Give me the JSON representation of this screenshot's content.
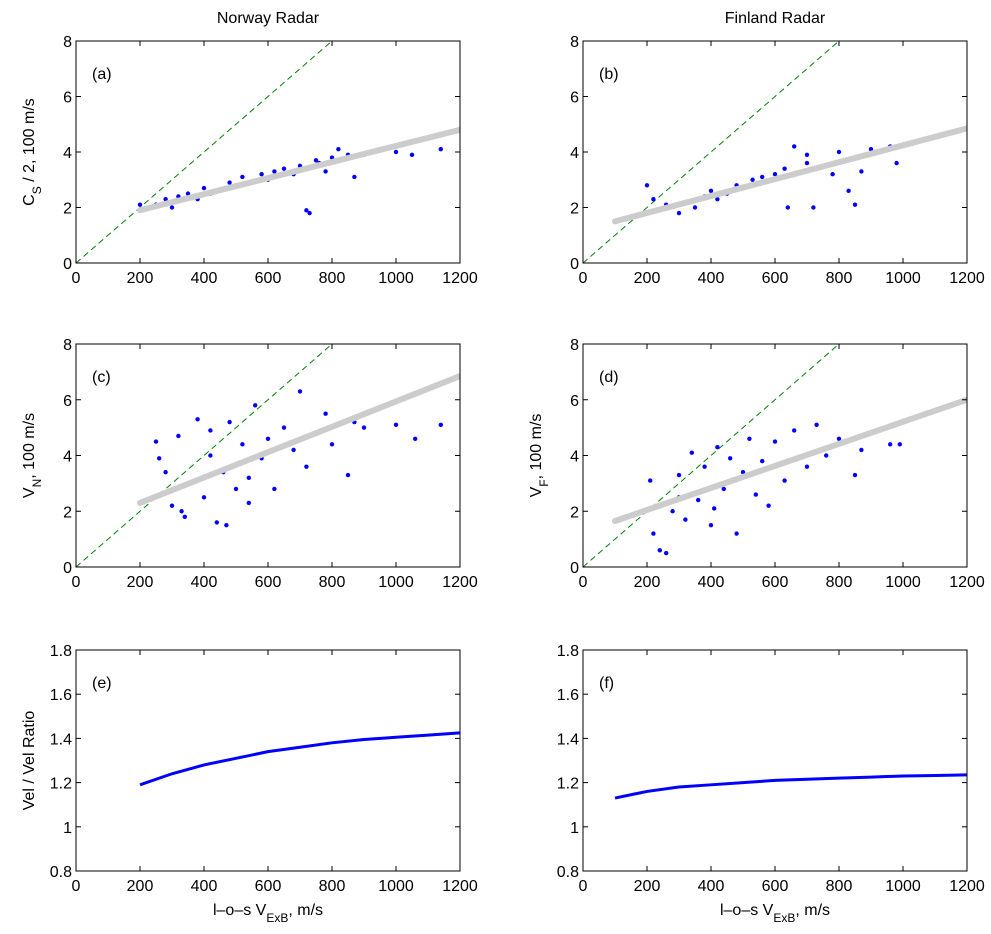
{
  "chart_data": [
    {
      "type": "scatter",
      "title": "Norway Radar",
      "panel_label": "(a)",
      "ylabel": [
        "C",
        "S",
        " / 2, 100 m/s"
      ],
      "xlim": [
        0,
        1200
      ],
      "xticks": [
        0,
        200,
        400,
        600,
        800,
        1000,
        1200
      ],
      "ylim": [
        0,
        8
      ],
      "yticks": [
        0,
        2,
        4,
        6,
        8
      ],
      "color": "#0000ff",
      "fit_color": "#cccccc",
      "reference_color": "#008000",
      "x": [
        250,
        280,
        300,
        320,
        350,
        380,
        400,
        420,
        450,
        480,
        500,
        520,
        550,
        580,
        600,
        620,
        650,
        680,
        700,
        720,
        750,
        780,
        800,
        820,
        850,
        870,
        730,
        760,
        1000,
        1050,
        1140,
        200,
        900
      ],
      "y": [
        2.1,
        2.3,
        2.0,
        2.4,
        2.5,
        2.3,
        2.7,
        2.5,
        2.6,
        2.9,
        2.8,
        3.1,
        2.9,
        3.2,
        3.0,
        3.3,
        3.4,
        3.2,
        3.5,
        1.9,
        3.7,
        3.3,
        3.8,
        4.1,
        3.9,
        3.1,
        1.8,
        3.6,
        4.0,
        3.9,
        4.1,
        2.1,
        3.9
      ],
      "fit": {
        "x": [
          200,
          1200
        ],
        "y": [
          1.9,
          4.8
        ]
      },
      "reference": {
        "x": [
          0,
          800
        ],
        "y": [
          0,
          8
        ]
      }
    },
    {
      "type": "scatter",
      "title": "Finland Radar",
      "panel_label": "(b)",
      "xlim": [
        0,
        1200
      ],
      "xticks": [
        0,
        200,
        400,
        600,
        800,
        1000,
        1200
      ],
      "ylim": [
        0,
        8
      ],
      "yticks": [
        0,
        2,
        4,
        6,
        8
      ],
      "color": "#0000ff",
      "fit_color": "#cccccc",
      "reference_color": "#008000",
      "x": [
        200,
        220,
        260,
        300,
        320,
        350,
        380,
        400,
        420,
        450,
        480,
        500,
        530,
        560,
        600,
        630,
        660,
        700,
        720,
        750,
        780,
        800,
        830,
        850,
        870,
        900,
        960,
        980,
        640,
        700
      ],
      "y": [
        2.8,
        2.3,
        2.1,
        1.8,
        2.2,
        2.0,
        2.4,
        2.6,
        2.3,
        2.5,
        2.8,
        2.7,
        3.0,
        3.1,
        3.2,
        3.4,
        4.2,
        3.6,
        2.0,
        3.5,
        3.2,
        4.0,
        2.6,
        2.1,
        3.3,
        4.1,
        4.2,
        3.6,
        2.0,
        3.9
      ],
      "fit": {
        "x": [
          100,
          1200
        ],
        "y": [
          1.5,
          4.85
        ]
      },
      "reference": {
        "x": [
          0,
          800
        ],
        "y": [
          0,
          8
        ]
      }
    },
    {
      "type": "scatter",
      "panel_label": "(c)",
      "ylabel": [
        "V",
        "N",
        ", 100 m/s"
      ],
      "xlim": [
        0,
        1200
      ],
      "xticks": [
        0,
        200,
        400,
        600,
        800,
        1000,
        1200
      ],
      "ylim": [
        0,
        8
      ],
      "yticks": [
        0,
        2,
        4,
        6,
        8
      ],
      "color": "#0000ff",
      "fit_color": "#cccccc",
      "reference_color": "#008000",
      "x": [
        200,
        250,
        280,
        300,
        320,
        340,
        360,
        380,
        400,
        420,
        440,
        460,
        480,
        500,
        520,
        540,
        560,
        580,
        600,
        620,
        650,
        680,
        700,
        720,
        750,
        780,
        800,
        850,
        870,
        900,
        1000,
        1060,
        1140,
        260,
        330,
        470,
        420,
        540
      ],
      "y": [
        2.3,
        4.5,
        3.4,
        2.2,
        4.7,
        1.8,
        3.0,
        5.3,
        2.5,
        4.0,
        1.6,
        3.4,
        5.2,
        2.8,
        4.4,
        3.2,
        5.8,
        3.9,
        4.6,
        2.8,
        5.0,
        4.2,
        6.3,
        3.6,
        4.8,
        5.5,
        4.4,
        3.3,
        5.2,
        5.0,
        5.1,
        4.6,
        5.1,
        3.9,
        2.0,
        1.5,
        4.9,
        2.3
      ],
      "fit": {
        "x": [
          200,
          1200
        ],
        "y": [
          2.3,
          6.85
        ]
      },
      "reference": {
        "x": [
          0,
          800
        ],
        "y": [
          0,
          8
        ]
      }
    },
    {
      "type": "scatter",
      "panel_label": "(d)",
      "ylabel": [
        "V",
        "F",
        ", 100 m/s"
      ],
      "xlim": [
        0,
        1200
      ],
      "xticks": [
        0,
        200,
        400,
        600,
        800,
        1000,
        1200
      ],
      "ylim": [
        0,
        8
      ],
      "yticks": [
        0,
        2,
        4,
        6,
        8
      ],
      "color": "#0000ff",
      "fit_color": "#cccccc",
      "reference_color": "#008000",
      "x": [
        210,
        220,
        240,
        260,
        280,
        300,
        320,
        340,
        360,
        380,
        400,
        420,
        440,
        460,
        480,
        500,
        520,
        540,
        560,
        580,
        600,
        630,
        660,
        700,
        730,
        760,
        800,
        850,
        870,
        960,
        990,
        300,
        410
      ],
      "y": [
        3.1,
        1.2,
        0.6,
        0.5,
        2.0,
        3.3,
        1.7,
        4.1,
        2.4,
        3.6,
        1.5,
        4.3,
        2.8,
        3.9,
        1.2,
        3.4,
        4.6,
        2.6,
        3.8,
        2.2,
        4.5,
        3.1,
        4.9,
        3.6,
        5.1,
        4.0,
        4.6,
        3.3,
        4.2,
        4.4,
        4.4,
        2.5,
        2.1
      ],
      "fit": {
        "x": [
          100,
          1200
        ],
        "y": [
          1.65,
          6.0
        ]
      },
      "reference": {
        "x": [
          0,
          800
        ],
        "y": [
          0,
          8
        ]
      }
    },
    {
      "type": "line",
      "panel_label": "(e)",
      "ylabel": [
        "Vel / Vel Ratio"
      ],
      "xlabel": [
        "l–o–s  V",
        "ExB",
        ", m/s"
      ],
      "xlim": [
        0,
        1200
      ],
      "xticks": [
        0,
        200,
        400,
        600,
        800,
        1000,
        1200
      ],
      "ylim": [
        0.8,
        1.8
      ],
      "yticks": [
        0.8,
        1,
        1.2,
        1.4,
        1.6,
        1.8
      ],
      "color": "#0000ff",
      "x": [
        200,
        300,
        400,
        500,
        600,
        700,
        800,
        900,
        1000,
        1100,
        1200
      ],
      "y": [
        1.19,
        1.24,
        1.28,
        1.31,
        1.34,
        1.36,
        1.38,
        1.395,
        1.405,
        1.415,
        1.425
      ]
    },
    {
      "type": "line",
      "panel_label": "(f)",
      "xlabel": [
        "l–o–s  V",
        "ExB",
        ", m/s"
      ],
      "xlim": [
        0,
        1200
      ],
      "xticks": [
        0,
        200,
        400,
        600,
        800,
        1000,
        1200
      ],
      "ylim": [
        0.8,
        1.8
      ],
      "yticks": [
        0.8,
        1,
        1.2,
        1.4,
        1.6,
        1.8
      ],
      "color": "#0000ff",
      "x": [
        100,
        200,
        300,
        400,
        500,
        600,
        700,
        800,
        900,
        1000,
        1100,
        1200
      ],
      "y": [
        1.13,
        1.16,
        1.18,
        1.19,
        1.2,
        1.21,
        1.215,
        1.22,
        1.225,
        1.23,
        1.232,
        1.235
      ]
    }
  ]
}
